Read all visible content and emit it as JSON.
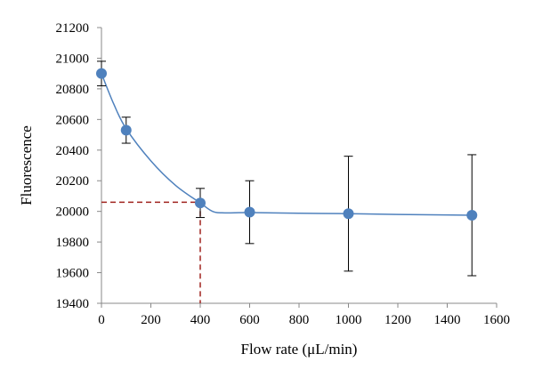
{
  "chart_data": {
    "type": "scatter",
    "title": "",
    "xlabel": "Flow rate (μL/min)",
    "ylabel": "Fluorescence",
    "xlim": [
      0,
      1600
    ],
    "ylim": [
      19400,
      21200
    ],
    "x_ticks": [
      "0",
      "200",
      "400",
      "600",
      "800",
      "1000",
      "1200",
      "1400",
      "1600"
    ],
    "y_ticks": [
      "19400",
      "19600",
      "19800",
      "20000",
      "20200",
      "20400",
      "20600",
      "20800",
      "21000",
      "21200"
    ],
    "grid": false,
    "legend": "none",
    "series": [
      {
        "x": [
          0,
          100,
          400,
          600,
          1000,
          1500
        ],
        "y": [
          20900,
          20530,
          20055,
          19995,
          19985,
          19975
        ],
        "error": [
          80,
          85,
          95,
          205,
          375,
          395
        ]
      }
    ],
    "trend_line": {
      "x": [
        0,
        50,
        100,
        200,
        300,
        400,
        450,
        500,
        600,
        800,
        1000,
        1200,
        1500
      ],
      "y": [
        20900,
        20700,
        20540,
        20330,
        20170,
        20055,
        20000,
        19990,
        19992,
        19988,
        19985,
        19980,
        19975
      ]
    },
    "reference_point": {
      "x": 400,
      "y": 20060
    },
    "colors": {
      "marker": "#4f81bd",
      "line": "#4f81bd",
      "error_bar": "#000000",
      "reference": "#a0231e",
      "axis": "#888888"
    }
  }
}
